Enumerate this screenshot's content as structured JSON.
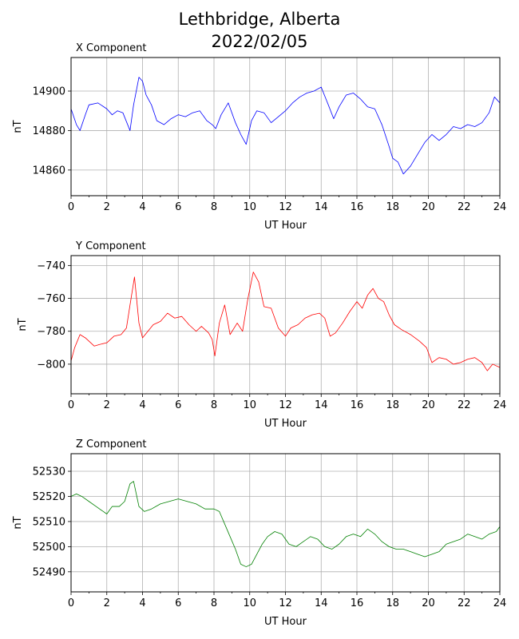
{
  "figure": {
    "title_line1": "Lethbridge, Alberta",
    "title_line2": "2022/02/05"
  },
  "chart_data": [
    {
      "type": "line",
      "title": "X Component",
      "xlabel": "UT Hour",
      "ylabel": "nT",
      "color": "#0000ff",
      "xlim": [
        0,
        24
      ],
      "ylim": [
        14847,
        14917
      ],
      "xticks": [
        0,
        2,
        4,
        6,
        8,
        10,
        12,
        14,
        16,
        18,
        20,
        22,
        24
      ],
      "yticks": [
        14860,
        14880,
        14900
      ],
      "grid": true,
      "x": [
        0,
        0.3,
        0.5,
        0.8,
        1.0,
        1.5,
        2.0,
        2.3,
        2.6,
        2.9,
        3.3,
        3.5,
        3.8,
        4.0,
        4.2,
        4.5,
        4.8,
        5.2,
        5.6,
        6.0,
        6.4,
        6.8,
        7.2,
        7.6,
        7.9,
        8.1,
        8.4,
        8.8,
        9.2,
        9.5,
        9.8,
        10.1,
        10.4,
        10.8,
        11.2,
        11.6,
        12.0,
        12.4,
        12.8,
        13.2,
        13.6,
        14.0,
        14.4,
        14.7,
        15.0,
        15.4,
        15.8,
        16.2,
        16.6,
        17.0,
        17.4,
        17.8,
        18.0,
        18.3,
        18.6,
        19.0,
        19.4,
        19.8,
        20.2,
        20.6,
        21.0,
        21.4,
        21.8,
        22.2,
        22.6,
        23.0,
        23.4,
        23.7,
        24.0
      ],
      "values": [
        14891,
        14883,
        14880,
        14888,
        14893,
        14894,
        14891,
        14888,
        14890,
        14889,
        14880,
        14893,
        14907,
        14905,
        14898,
        14893,
        14885,
        14883,
        14886,
        14888,
        14887,
        14889,
        14890,
        14885,
        14883,
        14881,
        14888,
        14894,
        14884,
        14878,
        14873,
        14885,
        14890,
        14889,
        14884,
        14887,
        14890,
        14894,
        14897,
        14899,
        14900,
        14902,
        14893,
        14886,
        14892,
        14898,
        14899,
        14896,
        14892,
        14891,
        14883,
        14872,
        14866,
        14864,
        14858,
        14862,
        14868,
        14874,
        14878,
        14875,
        14878,
        14882,
        14881,
        14883,
        14882,
        14884,
        14889,
        14897,
        14894
      ]
    },
    {
      "type": "line",
      "title": "Y Component",
      "xlabel": "UT Hour",
      "ylabel": "nT",
      "color": "#ff0000",
      "xlim": [
        0,
        24
      ],
      "ylim": [
        -818,
        -734
      ],
      "xticks": [
        0,
        2,
        4,
        6,
        8,
        10,
        12,
        14,
        16,
        18,
        20,
        22,
        24
      ],
      "yticks": [
        -740,
        -760,
        -780,
        -800
      ],
      "grid": true,
      "x": [
        0,
        0.2,
        0.5,
        0.8,
        1.0,
        1.3,
        1.6,
        2.0,
        2.4,
        2.8,
        3.1,
        3.3,
        3.55,
        3.8,
        4.0,
        4.3,
        4.6,
        5.0,
        5.4,
        5.8,
        6.2,
        6.6,
        7.0,
        7.3,
        7.7,
        7.9,
        8.05,
        8.3,
        8.6,
        8.9,
        9.3,
        9.6,
        9.9,
        10.2,
        10.5,
        10.8,
        11.2,
        11.6,
        12.0,
        12.3,
        12.7,
        13.1,
        13.5,
        13.9,
        14.2,
        14.5,
        14.8,
        15.2,
        15.6,
        16.0,
        16.3,
        16.6,
        16.9,
        17.2,
        17.5,
        17.8,
        18.1,
        18.5,
        19.0,
        19.5,
        19.9,
        20.2,
        20.6,
        21.0,
        21.4,
        21.8,
        22.2,
        22.6,
        23.0,
        23.3,
        23.6,
        24.0
      ],
      "values": [
        -798,
        -790,
        -782,
        -784,
        -786,
        -789,
        -788,
        -787,
        -783,
        -782,
        -778,
        -764,
        -747,
        -775,
        -784,
        -780,
        -776,
        -774,
        -769,
        -772,
        -771,
        -776,
        -780,
        -777,
        -781,
        -785,
        -795,
        -775,
        -764,
        -782,
        -775,
        -780,
        -760,
        -744,
        -750,
        -765,
        -766,
        -778,
        -783,
        -778,
        -776,
        -772,
        -770,
        -769,
        -772,
        -783,
        -781,
        -775,
        -768,
        -762,
        -766,
        -758,
        -754,
        -760,
        -762,
        -770,
        -776,
        -779,
        -782,
        -786,
        -790,
        -799,
        -796,
        -797,
        -800,
        -799,
        -797,
        -796,
        -799,
        -804,
        -800,
        -802
      ]
    },
    {
      "type": "line",
      "title": "Z Component",
      "xlabel": "UT Hour",
      "ylabel": "nT",
      "color": "#008000",
      "xlim": [
        0,
        24
      ],
      "ylim": [
        52482,
        52537
      ],
      "xticks": [
        0,
        2,
        4,
        6,
        8,
        10,
        12,
        14,
        16,
        18,
        20,
        22,
        24
      ],
      "yticks": [
        52490,
        52500,
        52510,
        52520,
        52530
      ],
      "grid": true,
      "x": [
        0,
        0.3,
        0.6,
        1.0,
        1.4,
        1.8,
        2.0,
        2.3,
        2.7,
        3.0,
        3.3,
        3.5,
        3.8,
        4.1,
        4.5,
        5.0,
        5.5,
        6.0,
        6.5,
        7.0,
        7.5,
        8.0,
        8.3,
        8.6,
        8.9,
        9.2,
        9.5,
        9.8,
        10.1,
        10.4,
        10.7,
        11.0,
        11.4,
        11.8,
        12.2,
        12.6,
        13.0,
        13.4,
        13.8,
        14.2,
        14.6,
        15.0,
        15.4,
        15.8,
        16.2,
        16.6,
        17.0,
        17.4,
        17.8,
        18.2,
        18.6,
        19.0,
        19.4,
        19.8,
        20.2,
        20.6,
        21.0,
        21.4,
        21.8,
        22.2,
        22.6,
        23.0,
        23.4,
        23.8,
        24.0
      ],
      "values": [
        52520,
        52521,
        52520,
        52518,
        52516,
        52514,
        52513,
        52516,
        52516,
        52518,
        52525,
        52526,
        52516,
        52514,
        52515,
        52517,
        52518,
        52519,
        52518,
        52517,
        52515,
        52515,
        52514,
        52509,
        52504,
        52499,
        52493,
        52492,
        52493,
        52497,
        52501,
        52504,
        52506,
        52505,
        52501,
        52500,
        52502,
        52504,
        52503,
        52500,
        52499,
        52501,
        52504,
        52505,
        52504,
        52507,
        52505,
        52502,
        52500,
        52499,
        52499,
        52498,
        52497,
        52496,
        52497,
        52498,
        52501,
        52502,
        52503,
        52505,
        52504,
        52503,
        52505,
        52506,
        52508
      ]
    }
  ]
}
